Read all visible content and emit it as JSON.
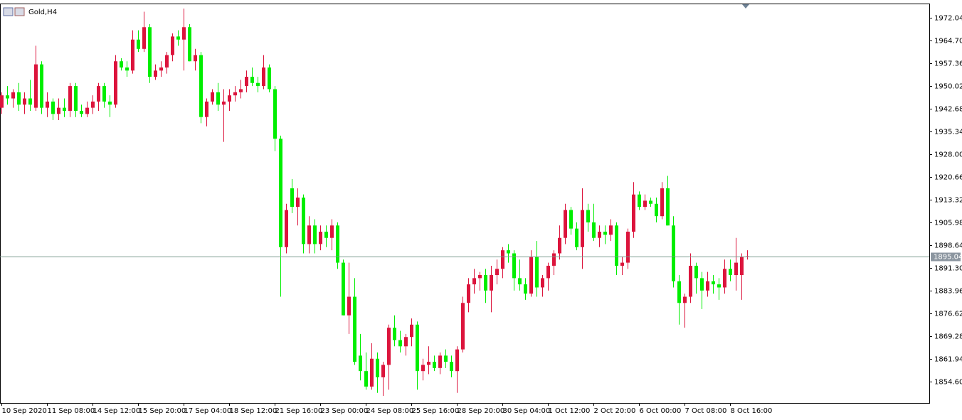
{
  "chart_data": {
    "type": "candlestick",
    "title": "Gold,H4",
    "up_color": "#dc143c",
    "down_color": "#00ee00",
    "ylim": [
      1847.72,
      1976.63
    ],
    "yticks": [
      1972.04,
      {
        "value": 1964.7,
        "label": "1964.70"
      },
      1957.36,
      1950.02,
      1942.68,
      1935.34,
      {
        "value": 1928,
        "label": "1928.00"
      },
      1920.66,
      1913.32,
      1905.98,
      1898.64,
      {
        "value": 1891.3,
        "label": "1891.30"
      },
      1883.96,
      1876.62,
      1869.28,
      1861.94,
      {
        "value": 1854.6,
        "label": "1854.60"
      }
    ],
    "last_price": 1895.04,
    "xticks": [
      {
        "value": 0,
        "label": "10 Sep 2020"
      },
      {
        "value": 8,
        "label": "11 Sep 08:00"
      },
      {
        "value": 16,
        "label": "14 Sep 12:00"
      },
      {
        "value": 24,
        "label": "15 Sep 20:00"
      },
      {
        "value": 32,
        "label": "17 Sep 04:00"
      },
      {
        "value": 40,
        "label": "18 Sep 12:00"
      },
      {
        "value": 48,
        "label": "21 Sep 16:00"
      },
      {
        "value": 56,
        "label": "23 Sep 00:00"
      },
      {
        "value": 64,
        "label": "24 Sep 08:00"
      },
      {
        "value": 72,
        "label": "25 Sep 16:00"
      },
      {
        "value": 80,
        "label": "28 Sep 20:00"
      },
      {
        "value": 88,
        "label": "30 Sep 04:00"
      },
      {
        "value": 96,
        "label": "1 Oct 12:00"
      },
      {
        "value": 104,
        "label": "2 Oct 20:00"
      },
      {
        "value": 112,
        "label": "6 Oct 00:00"
      },
      {
        "value": 120,
        "label": "7 Oct 08:00"
      },
      {
        "value": 128,
        "label": "8 Oct 16:00"
      }
    ],
    "ohlc": [
      [
        1943,
        1948,
        1941,
        1947
      ],
      [
        1947,
        1950,
        1944,
        1946
      ],
      [
        1946,
        1949,
        1943,
        1948
      ],
      [
        1948,
        1951,
        1942,
        1944
      ],
      [
        1944,
        1948,
        1941,
        1946
      ],
      [
        1946,
        1952,
        1942,
        1944
      ],
      [
        1943,
        1963,
        1942,
        1957
      ],
      [
        1957,
        1958,
        1941,
        1943
      ],
      [
        1943,
        1948,
        1940,
        1945
      ],
      [
        1945,
        1946,
        1939,
        1941
      ],
      [
        1941,
        1946,
        1939,
        1943
      ],
      [
        1943,
        1946,
        1940,
        1942
      ],
      [
        1942,
        1951,
        1940,
        1950
      ],
      [
        1950,
        1951,
        1940,
        1942
      ],
      [
        1942,
        1944,
        1940,
        1941
      ],
      [
        1941,
        1945,
        1940,
        1943
      ],
      [
        1943,
        1947,
        1941,
        1945
      ],
      [
        1945,
        1951,
        1942,
        1950
      ],
      [
        1950,
        1951,
        1943,
        1945
      ],
      [
        1945,
        1947,
        1940,
        1944
      ],
      [
        1944,
        1960,
        1943,
        1958
      ],
      [
        1958,
        1959,
        1955,
        1956
      ],
      [
        1956,
        1958,
        1953,
        1955
      ],
      [
        1955,
        1968,
        1954,
        1965
      ],
      [
        1965,
        1968,
        1961,
        1962
      ],
      [
        1962,
        1974,
        1961,
        1969
      ],
      [
        1969,
        1970,
        1951,
        1953
      ],
      [
        1953,
        1957,
        1952,
        1955
      ],
      [
        1955,
        1958,
        1953,
        1956
      ],
      [
        1956,
        1961,
        1954,
        1960
      ],
      [
        1960,
        1967,
        1958,
        1966
      ],
      [
        1966,
        1968,
        1963,
        1965
      ],
      [
        1965,
        1975,
        1955,
        1969
      ],
      [
        1969,
        1970,
        1958,
        1958
      ],
      [
        1958,
        1962,
        1955,
        1960
      ],
      [
        1960,
        1961,
        1938,
        1940
      ],
      [
        1940,
        1946,
        1937,
        1945
      ],
      [
        1945,
        1949,
        1944,
        1948
      ],
      [
        1948,
        1951,
        1942,
        1944
      ],
      [
        1944,
        1949,
        1932,
        1945
      ],
      [
        1945,
        1949,
        1942,
        1947
      ],
      [
        1947,
        1950,
        1945,
        1948
      ],
      [
        1948,
        1952,
        1946,
        1949
      ],
      [
        1950,
        1955,
        1948,
        1953
      ],
      [
        1953,
        1956,
        1950,
        1951
      ],
      [
        1951,
        1953,
        1948,
        1950
      ],
      [
        1950,
        1960,
        1949,
        1956
      ],
      [
        1956,
        1957,
        1948,
        1949
      ],
      [
        1949,
        1950,
        1929,
        1933
      ],
      [
        1933,
        1934,
        1882,
        1898
      ],
      [
        1898,
        1912,
        1896,
        1910
      ],
      [
        1917,
        1920,
        1909,
        1911
      ],
      [
        1911,
        1917,
        1905,
        1914
      ],
      [
        1914,
        1915,
        1896,
        1899
      ],
      [
        1899,
        1908,
        1896,
        1905
      ],
      [
        1905,
        1907,
        1896,
        1899
      ],
      [
        1899,
        1905,
        1897,
        1903
      ],
      [
        1903,
        1905,
        1898,
        1901
      ],
      [
        1901,
        1907,
        1897,
        1905
      ],
      [
        1905,
        1906,
        1891,
        1893
      ],
      [
        1893,
        1894,
        1876,
        1876
      ],
      [
        1876,
        1893,
        1870,
        1882
      ],
      [
        1882,
        1888,
        1860,
        1861
      ],
      [
        1863,
        1870,
        1855,
        1858
      ],
      [
        1858,
        1864,
        1852,
        1853
      ],
      [
        1853,
        1867,
        1852,
        1862
      ],
      [
        1862,
        1864,
        1851,
        1856
      ],
      [
        1856,
        1861,
        1850,
        1860
      ],
      [
        1860,
        1873,
        1852,
        1872
      ],
      [
        1872,
        1876,
        1866,
        1868
      ],
      [
        1868,
        1871,
        1864,
        1866
      ],
      [
        1866,
        1870,
        1863,
        1869
      ],
      [
        1869,
        1875,
        1866,
        1873
      ],
      [
        1873,
        1874,
        1852,
        1858
      ],
      [
        1858,
        1862,
        1855,
        1860
      ],
      [
        1860,
        1866,
        1857,
        1861
      ],
      [
        1861,
        1863,
        1858,
        1859
      ],
      [
        1859,
        1864,
        1857,
        1863
      ],
      [
        1863,
        1865,
        1859,
        1861
      ],
      [
        1861,
        1863,
        1856,
        1858
      ],
      [
        1858,
        1866,
        1851,
        1865
      ],
      [
        1865,
        1882,
        1864,
        1880
      ],
      [
        1880,
        1888,
        1877,
        1886
      ],
      [
        1886,
        1891,
        1883,
        1888
      ],
      [
        1888,
        1890,
        1884,
        1889
      ],
      [
        1889,
        1891,
        1880,
        1884
      ],
      [
        1884,
        1892,
        1877,
        1889
      ],
      [
        1889,
        1894,
        1886,
        1891
      ],
      [
        1891,
        1898,
        1888,
        1897
      ],
      [
        1897,
        1899,
        1893,
        1896
      ],
      [
        1896,
        1897,
        1884,
        1888
      ],
      [
        1888,
        1894,
        1884,
        1886
      ],
      [
        1886,
        1888,
        1881,
        1883
      ],
      [
        1883,
        1897,
        1882,
        1895
      ],
      [
        1895,
        1900,
        1882,
        1885
      ],
      [
        1885,
        1889,
        1882,
        1888
      ],
      [
        1888,
        1893,
        1884,
        1892
      ],
      [
        1892,
        1897,
        1889,
        1896
      ],
      [
        1896,
        1905,
        1894,
        1901
      ],
      [
        1901,
        1912,
        1899,
        1910
      ],
      [
        1910,
        1911,
        1902,
        1904
      ],
      [
        1904,
        1906,
        1897,
        1898
      ],
      [
        1898,
        1917,
        1891,
        1910
      ],
      [
        1910,
        1912,
        1903,
        1906
      ],
      [
        1906,
        1912,
        1900,
        1901
      ],
      [
        1901,
        1905,
        1898,
        1903
      ],
      [
        1903,
        1905,
        1899,
        1902
      ],
      [
        1902,
        1907,
        1900,
        1905
      ],
      [
        1905,
        1906,
        1889,
        1892
      ],
      [
        1892,
        1895,
        1889,
        1893
      ],
      [
        1893,
        1904,
        1891,
        1903
      ],
      [
        1903,
        1919,
        1901,
        1915
      ],
      [
        1915,
        1916,
        1910,
        1911
      ],
      [
        1911,
        1915,
        1910,
        1913
      ],
      [
        1913,
        1914,
        1911,
        1912
      ],
      [
        1912,
        1914,
        1906,
        1908
      ],
      [
        1908,
        1919,
        1907,
        1917
      ],
      [
        1917,
        1921,
        1905,
        1905
      ],
      [
        1905,
        1908,
        1885,
        1887
      ],
      [
        1887,
        1889,
        1873,
        1880
      ],
      [
        1880,
        1883,
        1872,
        1882
      ],
      [
        1882,
        1896,
        1880,
        1892
      ],
      [
        1892,
        1893,
        1883,
        1888
      ],
      [
        1888,
        1890,
        1878,
        1884
      ],
      [
        1884,
        1890,
        1882,
        1887
      ],
      [
        1887,
        1889,
        1883,
        1886
      ],
      [
        1886,
        1888,
        1881,
        1885
      ],
      [
        1885,
        1894,
        1883,
        1891
      ],
      [
        1891,
        1894,
        1887,
        1889
      ],
      [
        1889,
        1901,
        1884,
        1893
      ],
      [
        1889,
        1896,
        1881,
        1895
      ],
      [
        1895,
        1897,
        1894,
        1895.04
      ]
    ]
  }
}
